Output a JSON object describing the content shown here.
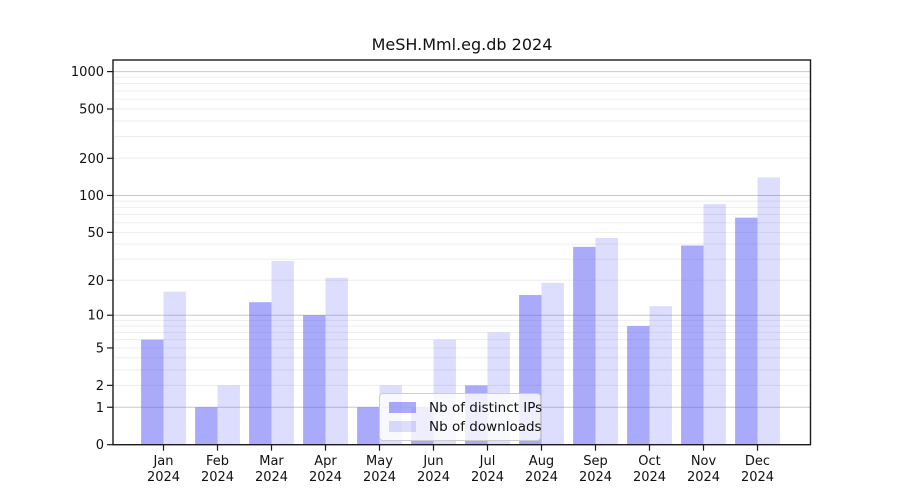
{
  "chart_data": {
    "type": "bar",
    "title": "MeSH.Mml.eg.db 2024",
    "categories": [
      "Jan",
      "Feb",
      "Mar",
      "Apr",
      "May",
      "Jun",
      "Jul",
      "Aug",
      "Sep",
      "Oct",
      "Nov",
      "Dec"
    ],
    "x_year_label": "2024",
    "series": [
      {
        "name": "Nb of distinct IPs",
        "color": "rgba(85,85,245,0.5)",
        "values": [
          6,
          1,
          13,
          10,
          1,
          1,
          2,
          15,
          38,
          8,
          39,
          66
        ]
      },
      {
        "name": "Nb of downloads",
        "color": "rgba(85,85,245,0.2)",
        "values": [
          16,
          2,
          29,
          21,
          2,
          6,
          7,
          19,
          45,
          12,
          85,
          140
        ]
      }
    ],
    "yscale": "log1p",
    "ylim": [
      0,
      1240
    ],
    "y_ticks": [
      0,
      1,
      2,
      5,
      10,
      20,
      50,
      100,
      200,
      500,
      1000
    ],
    "grid": {
      "on": true,
      "major_values": [
        1,
        10,
        100,
        1000
      ],
      "major_color": "#c8c8c8",
      "minor_color": "#ededed"
    },
    "legend_position": "lower center-left, inside plot",
    "axis_color": "#1a1a1a",
    "tick_label_color": "#111111"
  }
}
